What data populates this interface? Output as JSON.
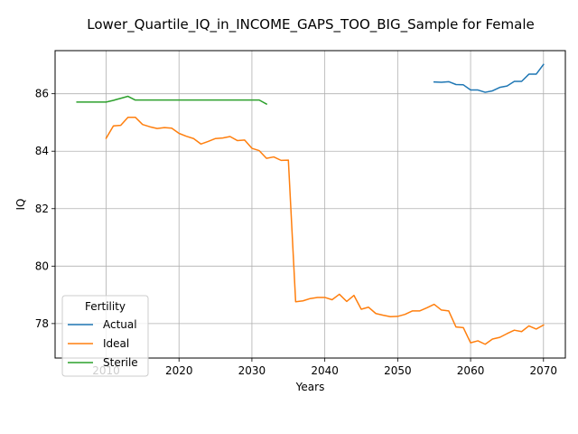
{
  "chart_data": {
    "type": "line",
    "title": "Lower_Quartile_IQ_in_INCOME_GAPS_TOO_BIG_Sample for Female",
    "xlabel": "Years",
    "ylabel": "IQ",
    "xlim": [
      2003,
      2073
    ],
    "ylim": [
      76.8,
      87.5
    ],
    "x_ticks": [
      2010,
      2020,
      2030,
      2040,
      2050,
      2060,
      2070
    ],
    "y_ticks": [
      78,
      80,
      82,
      84,
      86
    ],
    "grid": true,
    "legend": {
      "title": "Fertility",
      "position": "lower left",
      "entries": [
        "Actual",
        "Ideal",
        "Sterile"
      ]
    },
    "colors": {
      "Actual": "#1f77b4",
      "Ideal": "#ff7f0e",
      "Sterile": "#2ca02c"
    },
    "series": [
      {
        "name": "Actual",
        "x": [
          2055,
          2056,
          2057,
          2058,
          2059,
          2060,
          2061,
          2062,
          2063,
          2064,
          2065,
          2066,
          2067,
          2068,
          2069,
          2070
        ],
        "y": [
          86.41,
          86.4,
          86.42,
          86.32,
          86.31,
          86.13,
          86.13,
          86.05,
          86.1,
          86.22,
          86.27,
          86.43,
          86.43,
          86.68,
          86.68,
          87.02
        ]
      },
      {
        "name": "Ideal",
        "x": [
          2010,
          2011,
          2012,
          2013,
          2014,
          2015,
          2016,
          2017,
          2018,
          2019,
          2020,
          2021,
          2022,
          2023,
          2024,
          2025,
          2026,
          2027,
          2028,
          2029,
          2030,
          2031,
          2032,
          2033,
          2034,
          2035,
          2036,
          2037,
          2038,
          2039,
          2040,
          2041,
          2042,
          2043,
          2044,
          2045,
          2046,
          2047,
          2048,
          2049,
          2050,
          2051,
          2052,
          2053,
          2054,
          2055,
          2056,
          2057,
          2058,
          2059,
          2060,
          2061,
          2062,
          2063,
          2064,
          2065,
          2066,
          2067,
          2068,
          2069,
          2070
        ],
        "y": [
          84.45,
          84.88,
          84.9,
          85.18,
          85.18,
          84.93,
          84.85,
          84.79,
          84.82,
          84.8,
          84.62,
          84.52,
          84.44,
          84.25,
          84.34,
          84.44,
          84.46,
          84.51,
          84.37,
          84.39,
          84.1,
          84.02,
          83.75,
          83.8,
          83.68,
          83.69,
          78.76,
          78.79,
          78.87,
          78.91,
          78.91,
          78.83,
          79.02,
          78.77,
          78.98,
          78.5,
          78.57,
          78.35,
          78.29,
          78.24,
          78.25,
          78.32,
          78.44,
          78.44,
          78.55,
          78.67,
          78.47,
          78.44,
          77.88,
          77.86,
          77.33,
          77.4,
          77.28,
          77.46,
          77.52,
          77.65,
          77.77,
          77.72,
          77.92,
          77.81,
          77.95
        ]
      },
      {
        "name": "Sterile",
        "x": [
          2006,
          2007,
          2008,
          2009,
          2010,
          2011,
          2012,
          2013,
          2014,
          2015,
          2016,
          2017,
          2018,
          2019,
          2020,
          2021,
          2022,
          2023,
          2024,
          2025,
          2026,
          2027,
          2028,
          2029,
          2030,
          2031,
          2032
        ],
        "y": [
          85.71,
          85.71,
          85.71,
          85.71,
          85.71,
          85.77,
          85.84,
          85.91,
          85.78,
          85.78,
          85.78,
          85.78,
          85.78,
          85.78,
          85.78,
          85.78,
          85.78,
          85.78,
          85.78,
          85.78,
          85.78,
          85.78,
          85.78,
          85.78,
          85.78,
          85.78,
          85.64
        ]
      }
    ]
  }
}
